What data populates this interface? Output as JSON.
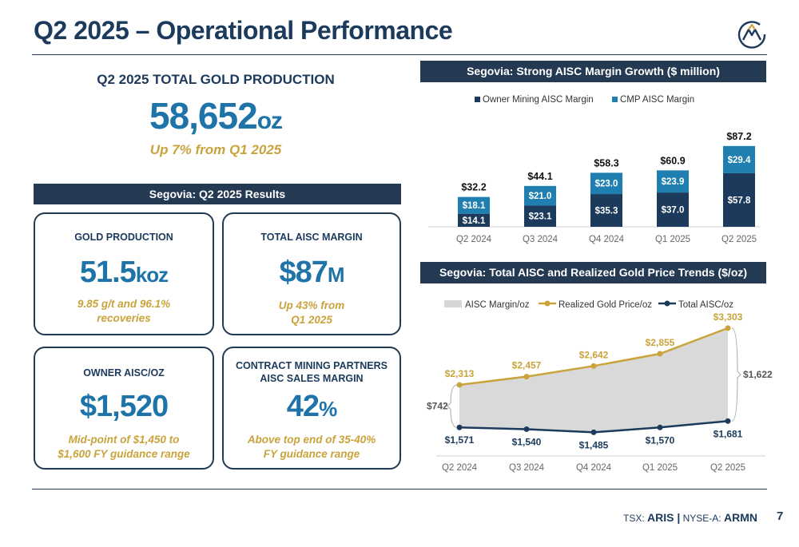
{
  "title": "Q2 2025 – Operational Performance",
  "production": {
    "heading": "Q2 2025 TOTAL GOLD PRODUCTION",
    "value": "58,652",
    "unit": "oz",
    "subtitle": "Up 7% from Q1 2025"
  },
  "results_header": "Segovia: Q2 2025 Results",
  "cards": {
    "gold": {
      "heading": "GOLD PRODUCTION",
      "value": "51.5",
      "unit": "koz",
      "sub1": "9.85 g/t and 96.1%",
      "sub2": "recoveries"
    },
    "margin": {
      "heading": "TOTAL AISC MARGIN",
      "value": "$87",
      "unit": "M",
      "sub1": "Up 43% from",
      "sub2": "Q1 2025"
    },
    "aisc": {
      "heading": "OWNER AISC/OZ",
      "value": "$1,520",
      "unit": "",
      "sub1": "Mid-point of $1,450 to",
      "sub2": "$1,600 FY guidance range"
    },
    "cmp": {
      "heading1": "CONTRACT MINING PARTNERS",
      "heading2": "AISC SALES MARGIN",
      "value": "42",
      "unit": "%",
      "sub1": "Above top end of 35-40%",
      "sub2": "FY guidance range"
    }
  },
  "footer": {
    "tsx_label": "TSX:",
    "tsx": "ARIS |",
    "nyse_label": "NYSE-A:",
    "nyse": "ARMN",
    "page": "7"
  },
  "colors": {
    "navy": "#1b3a5c",
    "blue": "#1e73a8",
    "gold": "#c9a33b"
  },
  "chart_data": [
    {
      "type": "bar",
      "title": "Segovia: Strong AISC Margin Growth ($ million)",
      "stacked": true,
      "categories": [
        "Q2 2024",
        "Q3 2024",
        "Q4 2024",
        "Q1 2025",
        "Q2 2025"
      ],
      "series": [
        {
          "name": "Owner Mining AISC Margin",
          "values": [
            14.1,
            23.1,
            35.3,
            37.0,
            57.8
          ],
          "labels": [
            "$14.1",
            "$23.1",
            "$35.3",
            "$37.0",
            "$57.8"
          ],
          "color": "#1b3a5c"
        },
        {
          "name": "CMP AISC Margin",
          "values": [
            18.1,
            21.0,
            23.0,
            23.9,
            29.4
          ],
          "labels": [
            "$18.1",
            "$21.0",
            "$23.0",
            "$23.9",
            "$29.4"
          ],
          "color": "#1e7fb0"
        }
      ],
      "totals": [
        "$32.2",
        "$44.1",
        "$58.3",
        "$60.9",
        "$87.2"
      ],
      "legend": "top"
    },
    {
      "type": "line",
      "title": "Segovia: Total AISC and Realized Gold Price Trends ($/oz)",
      "categories": [
        "Q2 2024",
        "Q3 2024",
        "Q4 2024",
        "Q1 2025",
        "Q2 2025"
      ],
      "series": [
        {
          "name": "AISC Margin/oz",
          "kind": "area",
          "color": "#d6d6d6"
        },
        {
          "name": "Realized Gold Price/oz",
          "values": [
            2313,
            2457,
            2642,
            2855,
            3303
          ],
          "labels": [
            "$2,313",
            "$2,457",
            "$2,642",
            "$2,855",
            "$3,303"
          ],
          "color": "#c9a33b"
        },
        {
          "name": "Total AISC/oz",
          "values": [
            1571,
            1540,
            1485,
            1570,
            1681
          ],
          "labels": [
            "$1,571",
            "$1,540",
            "$1,485",
            "$1,570",
            "$1,681"
          ],
          "color": "#1b3a5c"
        }
      ],
      "annotations": {
        "first_margin": "$742",
        "last_margin": "$1,622"
      },
      "legend": "top"
    }
  ]
}
